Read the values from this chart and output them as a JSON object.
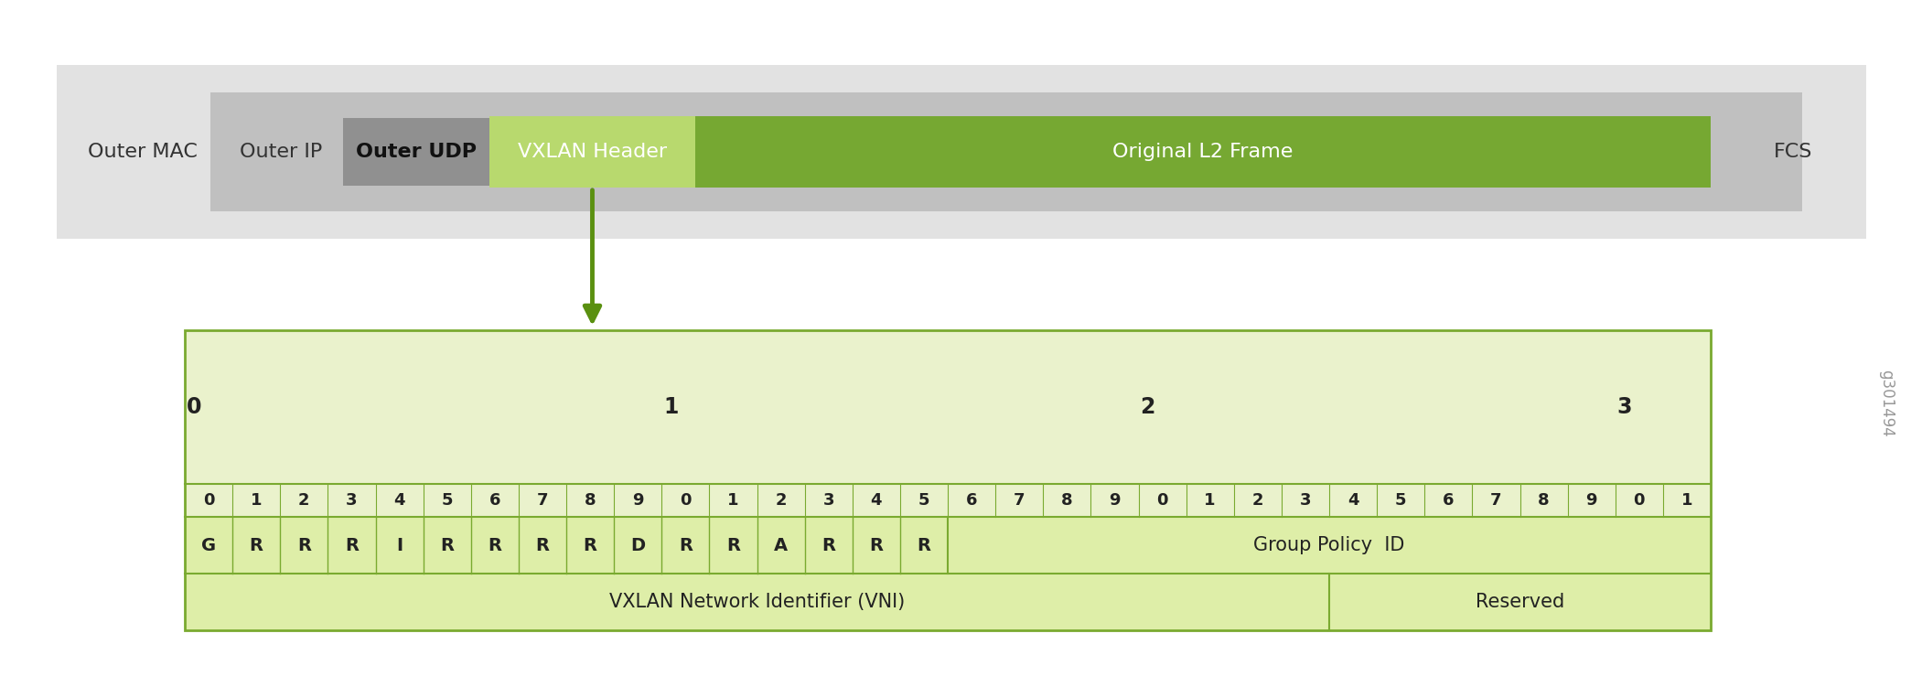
{
  "figure_bg": "#ffffff",
  "outer_mac_label": "Outer MAC",
  "outer_ip_label": "Outer IP",
  "outer_udp_label": "Outer UDP",
  "vxlan_header_label": "VXLAN Header",
  "original_l2_label": "Original L2 Frame",
  "fcs_label": "FCS",
  "layer_colors": {
    "outermost": "#e2e2e2",
    "middle": "#c0c0c0",
    "inner": "#909090",
    "vxlan_light": "#b8d96e",
    "l2frame": "#76a832"
  },
  "bit_cell_border": "#7aaa30",
  "table_outer_bg": "#eaf2cc",
  "table_inner_bg": "#deeea8",
  "bit_labels_row2": [
    "0",
    "1",
    "2",
    "3",
    "4",
    "5",
    "6",
    "7",
    "8",
    "9",
    "0",
    "1",
    "2",
    "3",
    "4",
    "5",
    "6",
    "7",
    "8",
    "9",
    "0",
    "1",
    "2",
    "3",
    "4",
    "5",
    "6",
    "7",
    "8",
    "9",
    "0",
    "1"
  ],
  "field_row1": [
    "G",
    "R",
    "R",
    "R",
    "I",
    "R",
    "R",
    "R",
    "R",
    "D",
    "R",
    "R",
    "A",
    "R",
    "R",
    "R"
  ],
  "field_row1_right_label": "Group Policy  ID",
  "field_row2_left_label": "VXLAN Network Identifier (VNI)",
  "field_row2_right_label": "Reserved",
  "arrow_color": "#5a9010",
  "watermark": "g301494"
}
